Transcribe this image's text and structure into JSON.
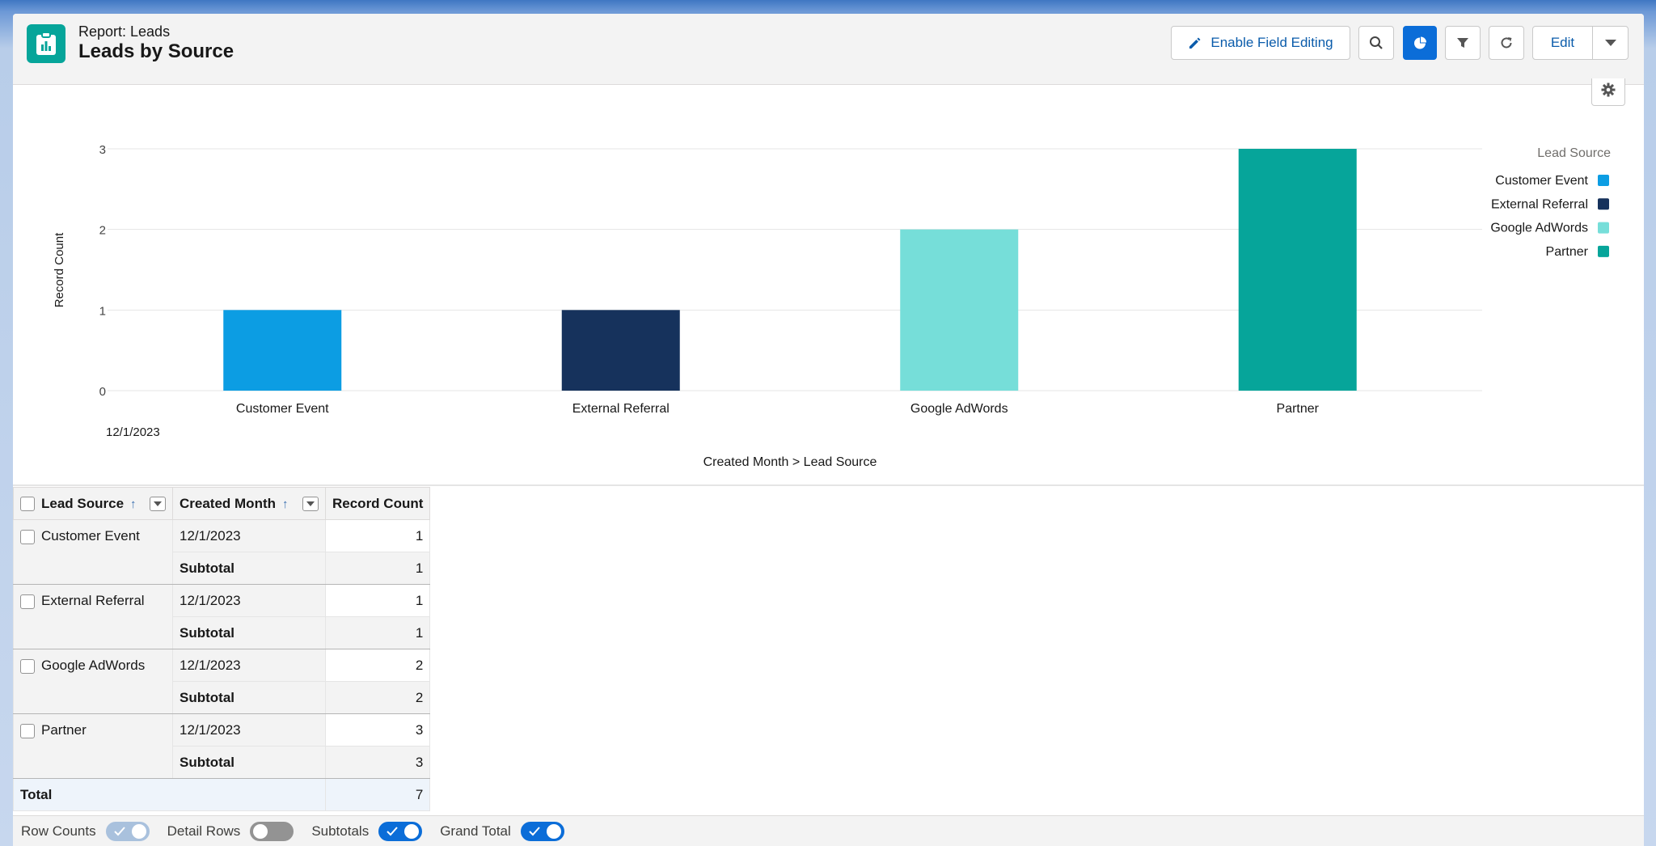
{
  "header": {
    "report_type": "Report: Leads",
    "title": "Leads by Source",
    "enable_field_editing_label": "Enable Field Editing",
    "edit_label": "Edit"
  },
  "icons": {
    "app": "report-clipboard-icon",
    "pencil": "pencil-icon",
    "search": "search-icon",
    "chart": "pie-chart-icon",
    "filter": "filter-icon",
    "refresh": "refresh-icon",
    "more": "chevron-down-icon",
    "gear": "gear-icon"
  },
  "chart_data": {
    "type": "bar",
    "categories": [
      "Customer Event",
      "External Referral",
      "Google AdWords",
      "Partner"
    ],
    "values": [
      1,
      1,
      2,
      3
    ],
    "colors": [
      "#0c9de3",
      "#16325c",
      "#76ded9",
      "#06a59a"
    ],
    "group_label": "12/1/2023",
    "xlabel": "Created Month > Lead Source",
    "ylabel": "Record Count",
    "ylim": [
      0,
      3
    ],
    "yticks": [
      0,
      1,
      2,
      3
    ],
    "grid": true,
    "legend": {
      "title": "Lead Source",
      "placement": "top-right",
      "entries": [
        "Customer Event",
        "External Referral",
        "Google AdWords",
        "Partner"
      ]
    }
  },
  "table": {
    "headers": {
      "lead_source": "Lead Source",
      "created_month": "Created Month",
      "record_count": "Record Count"
    },
    "groups": [
      {
        "lead_source": "Customer Event",
        "created_month": "12/1/2023",
        "count": "1",
        "subtotal_label": "Subtotal",
        "subtotal": "1"
      },
      {
        "lead_source": "External Referral",
        "created_month": "12/1/2023",
        "count": "1",
        "subtotal_label": "Subtotal",
        "subtotal": "1"
      },
      {
        "lead_source": "Google AdWords",
        "created_month": "12/1/2023",
        "count": "2",
        "subtotal_label": "Subtotal",
        "subtotal": "2"
      },
      {
        "lead_source": "Partner",
        "created_month": "12/1/2023",
        "count": "3",
        "subtotal_label": "Subtotal",
        "subtotal": "3"
      }
    ],
    "total_label": "Total",
    "total": "7"
  },
  "footer": {
    "row_counts_label": "Row Counts",
    "row_counts_on": true,
    "detail_rows_label": "Detail Rows",
    "detail_rows_on": false,
    "subtotals_label": "Subtotals",
    "subtotals_on": true,
    "grand_total_label": "Grand Total",
    "grand_total_on": true
  }
}
